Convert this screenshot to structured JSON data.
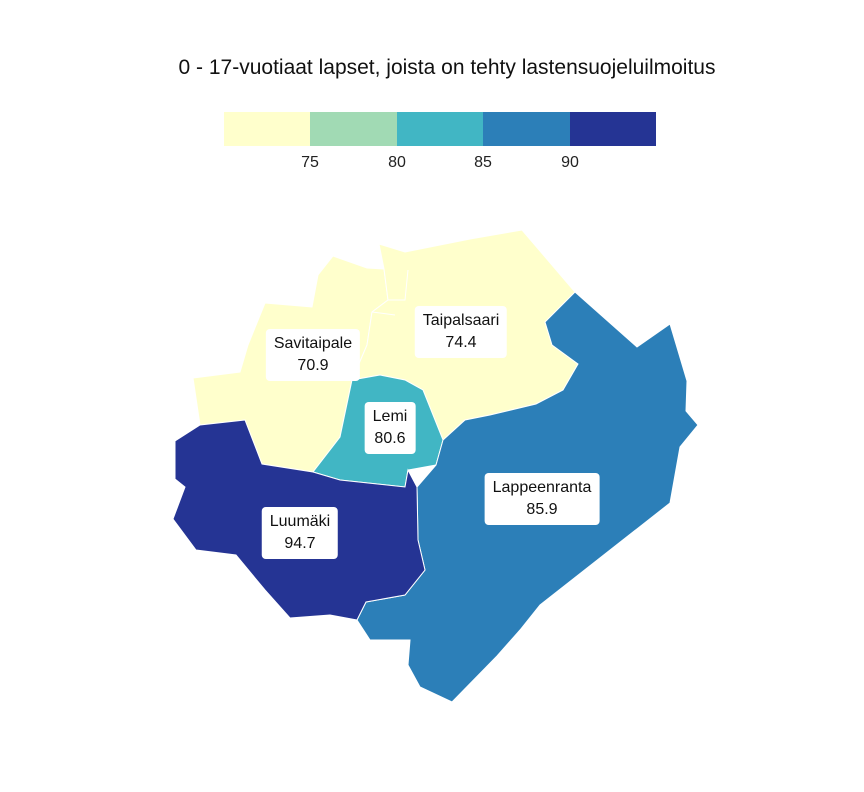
{
  "title": "0 - 17-vuotiaat lapset, joista on tehty lastensuojeluilmoitus",
  "legend": {
    "colors": [
      "#ffffcc",
      "#a1dab4",
      "#41b6c4",
      "#2c7fb8",
      "#253494"
    ],
    "ticks": [
      "75",
      "80",
      "85",
      "90"
    ]
  },
  "regions": [
    {
      "name": "Savitaipale",
      "value": "70.9",
      "color": "#ffffcc"
    },
    {
      "name": "Taipalsaari",
      "value": "74.4",
      "color": "#ffffcc"
    },
    {
      "name": "Lemi",
      "value": "80.6",
      "color": "#41b6c4"
    },
    {
      "name": "Lappeenranta",
      "value": "85.9",
      "color": "#2c7fb8"
    },
    {
      "name": "Luumäki",
      "value": "94.7",
      "color": "#253494"
    }
  ]
}
